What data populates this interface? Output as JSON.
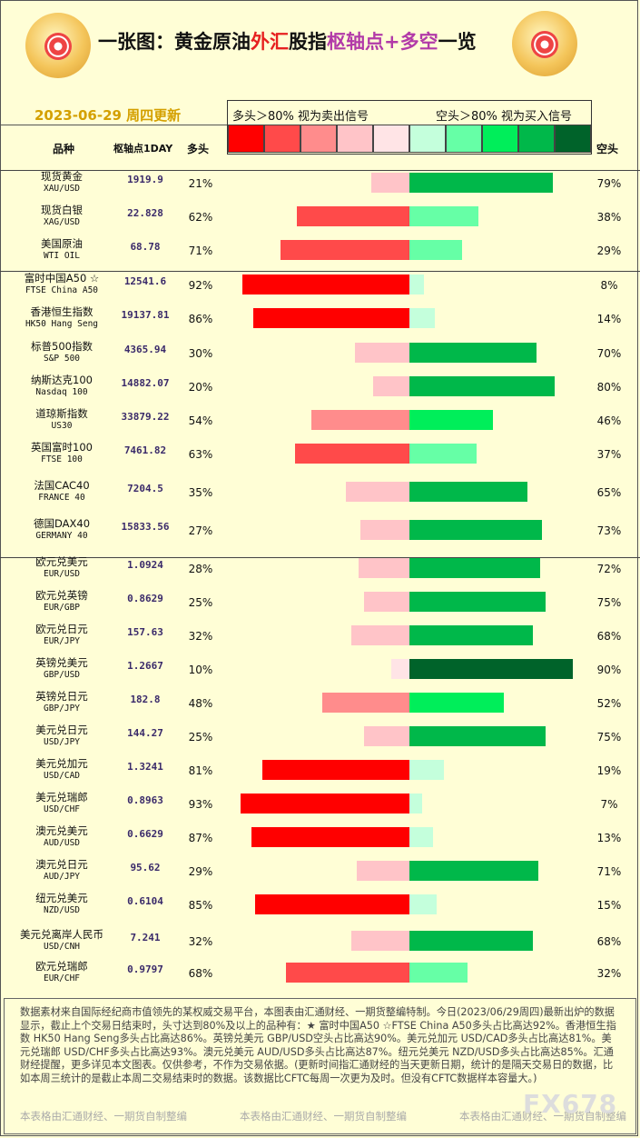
{
  "header": {
    "title_part1": "一张图：黄金原油",
    "title_part2": "外汇",
    "title_part3": "股指",
    "title_part4": "枢轴点+多空",
    "title_part5": "一览",
    "date": "2023-06-29 周四更新",
    "legend_left": "多头＞80% 视为卖出信号",
    "legend_right": "空头＞80% 视为买入信号",
    "col_product": "品种",
    "col_pivot": "枢轴点1DAY",
    "col_long": "多头",
    "col_short": "空头"
  },
  "colors": {
    "red1": "#ff0000",
    "red2": "#ff4a4a",
    "red3": "#ff8c8c",
    "red4": "#ffc4c8",
    "red5": "#ffe4e6",
    "green1": "#c4ffdc",
    "green2": "#66ffa6",
    "green3": "#00ee5a",
    "green4": "#00b84a",
    "green5": "#00632a"
  },
  "chart_data": {
    "type": "bar",
    "rows": [
      {
        "cn": "现货黄金",
        "en": "XAU/USD",
        "pivot": "1919.9",
        "long": 21,
        "short": 79,
        "long_label": "21%",
        "short_label": "79%"
      },
      {
        "cn": "现货白银",
        "en": "XAG/USD",
        "pivot": "22.828",
        "long": 62,
        "short": 38,
        "long_label": "62%",
        "short_label": "38%"
      },
      {
        "cn": "美国原油",
        "en": "WTI OIL",
        "pivot": "68.78",
        "long": 71,
        "short": 29,
        "long_label": "71%",
        "short_label": "29%"
      },
      {
        "cn": "富时中国A50 ☆",
        "en": "FTSE China A50",
        "pivot": "12541.6",
        "long": 92,
        "short": 8,
        "long_label": "92%",
        "short_label": "8%"
      },
      {
        "cn": "香港恒生指数",
        "en": "HK50 Hang Seng",
        "pivot": "19137.81",
        "long": 86,
        "short": 14,
        "long_label": "86%",
        "short_label": "14%"
      },
      {
        "cn": "标普500指数",
        "en": "S&P 500",
        "pivot": "4365.94",
        "long": 30,
        "short": 70,
        "long_label": "30%",
        "short_label": "70%"
      },
      {
        "cn": "纳斯达克100",
        "en": "Nasdaq 100",
        "pivot": "14882.07",
        "long": 20,
        "short": 80,
        "long_label": "20%",
        "short_label": "80%"
      },
      {
        "cn": "道琼斯指数",
        "en": "US30",
        "pivot": "33879.22",
        "long": 54,
        "short": 46,
        "long_label": "54%",
        "short_label": "46%"
      },
      {
        "cn": "英国富时100",
        "en": "FTSE 100",
        "pivot": "7461.82",
        "long": 63,
        "short": 37,
        "long_label": "63%",
        "short_label": "37%"
      },
      {
        "cn": "法国CAC40",
        "en": "FRANCE 40",
        "pivot": "7204.5",
        "long": 35,
        "short": 65,
        "long_label": "35%",
        "short_label": "65%"
      },
      {
        "cn": "德国DAX40",
        "en": "GERMANY 40",
        "pivot": "15833.56",
        "long": 27,
        "short": 73,
        "long_label": "27%",
        "short_label": "73%"
      },
      {
        "cn": "欧元兑美元",
        "en": "EUR/USD",
        "pivot": "1.0924",
        "long": 28,
        "short": 72,
        "long_label": "28%",
        "short_label": "72%"
      },
      {
        "cn": "欧元兑英镑",
        "en": "EUR/GBP",
        "pivot": "0.8629",
        "long": 25,
        "short": 75,
        "long_label": "25%",
        "short_label": "75%"
      },
      {
        "cn": "欧元兑日元",
        "en": "EUR/JPY",
        "pivot": "157.63",
        "long": 32,
        "short": 68,
        "long_label": "32%",
        "short_label": "68%"
      },
      {
        "cn": "英镑兑美元",
        "en": "GBP/USD",
        "pivot": "1.2667",
        "long": 10,
        "short": 90,
        "long_label": "10%",
        "short_label": "90%"
      },
      {
        "cn": "英镑兑日元",
        "en": "GBP/JPY",
        "pivot": "182.8",
        "long": 48,
        "short": 52,
        "long_label": "48%",
        "short_label": "52%"
      },
      {
        "cn": "美元兑日元",
        "en": "USD/JPY",
        "pivot": "144.27",
        "long": 25,
        "short": 75,
        "long_label": "25%",
        "short_label": "75%"
      },
      {
        "cn": "美元兑加元",
        "en": "USD/CAD",
        "pivot": "1.3241",
        "long": 81,
        "short": 19,
        "long_label": "81%",
        "short_label": "19%"
      },
      {
        "cn": "美元兑瑞郎",
        "en": "USD/CHF",
        "pivot": "0.8963",
        "long": 93,
        "short": 7,
        "long_label": "93%",
        "short_label": "7%"
      },
      {
        "cn": "澳元兑美元",
        "en": "AUD/USD",
        "pivot": "0.6629",
        "long": 87,
        "short": 13,
        "long_label": "87%",
        "short_label": "13%"
      },
      {
        "cn": "澳元兑日元",
        "en": "AUD/JPY",
        "pivot": "95.62",
        "long": 29,
        "short": 71,
        "long_label": "29%",
        "short_label": "71%"
      },
      {
        "cn": "纽元兑美元",
        "en": "NZD/USD",
        "pivot": "0.6104",
        "long": 85,
        "short": 15,
        "long_label": "85%",
        "short_label": "15%"
      },
      {
        "cn": "美元兑离岸人民币",
        "en": "USD/CNH",
        "pivot": "7.241",
        "long": 32,
        "short": 68,
        "long_label": "32%",
        "short_label": "68%"
      },
      {
        "cn": "欧元兑瑞郎",
        "en": "EUR/CHF",
        "pivot": "0.9797",
        "long": 68,
        "short": 32,
        "long_label": "68%",
        "short_label": "32%"
      }
    ]
  },
  "footer": {
    "text": "数据素材来自国际经纪商市值领先的某权威交易平台，本图表由汇通财经、一期货整编特制。今日(2023/06/29周四)最新出炉的数据显示，截止上个交易日结束时，头寸达到80%及以上的品种有：★ 富时中国A50 ☆FTSE China A50多头占比高达92%。香港恒生指数 HK50 Hang Seng多头占比高达86%。英镑兑美元 GBP/USD空头占比高达90%。美元兑加元 USD/CAD多头占比高达81%。美元兑瑞郎 USD/CHF多头占比高达93%。澳元兑美元 AUD/USD多头占比高达87%。纽元兑美元 NZD/USD多头占比高达85%。汇通财经提醒，更多详见本文图表。仅供参考，不作为交易依据。(更新时间指汇通财经的当天更新日期，统计的是隔天交易日的数据，比如本周三统计的是截止本周二交易结束时的数据。该数据比CFTC每周一次更为及时。但没有CFTC数据样本容量大。)",
    "credit": "本表格由汇通财经、一期货自制整编",
    "watermark": "FX678"
  }
}
